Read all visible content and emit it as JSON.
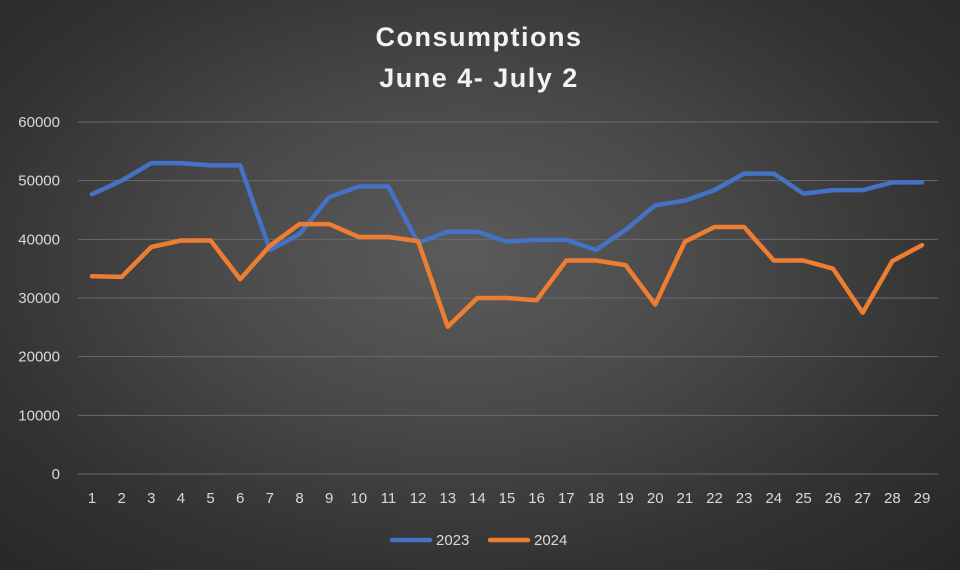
{
  "chart_data": {
    "type": "line",
    "title": "Consumptions",
    "subtitle": "June 4- July 2",
    "xlabel": "",
    "ylabel": "",
    "x": [
      1,
      2,
      3,
      4,
      5,
      6,
      7,
      8,
      9,
      10,
      11,
      12,
      13,
      14,
      15,
      16,
      17,
      18,
      19,
      20,
      21,
      22,
      23,
      24,
      25,
      26,
      27,
      28,
      29
    ],
    "ylim": [
      0,
      60000
    ],
    "yticks": [
      0,
      10000,
      20000,
      30000,
      40000,
      50000,
      60000
    ],
    "grid": true,
    "legend_position": "bottom",
    "series": [
      {
        "name": "2023",
        "color": "#4472c4",
        "values": [
          47700,
          50000,
          53000,
          53000,
          52600,
          52600,
          38200,
          40900,
          47200,
          49000,
          49000,
          39400,
          41300,
          41300,
          39600,
          39900,
          39900,
          38200,
          41600,
          45800,
          46600,
          48400,
          51200,
          51200,
          47800,
          48400,
          48400,
          49700,
          49700
        ]
      },
      {
        "name": "2024",
        "color": "#ed7d31",
        "values": [
          33700,
          33600,
          38700,
          39800,
          39800,
          33200,
          38900,
          42600,
          42600,
          40400,
          40400,
          39700,
          25100,
          30000,
          30000,
          29600,
          36400,
          36400,
          35600,
          28900,
          39600,
          42100,
          42100,
          36400,
          36400,
          35000,
          27500,
          36300,
          39000
        ]
      }
    ]
  }
}
